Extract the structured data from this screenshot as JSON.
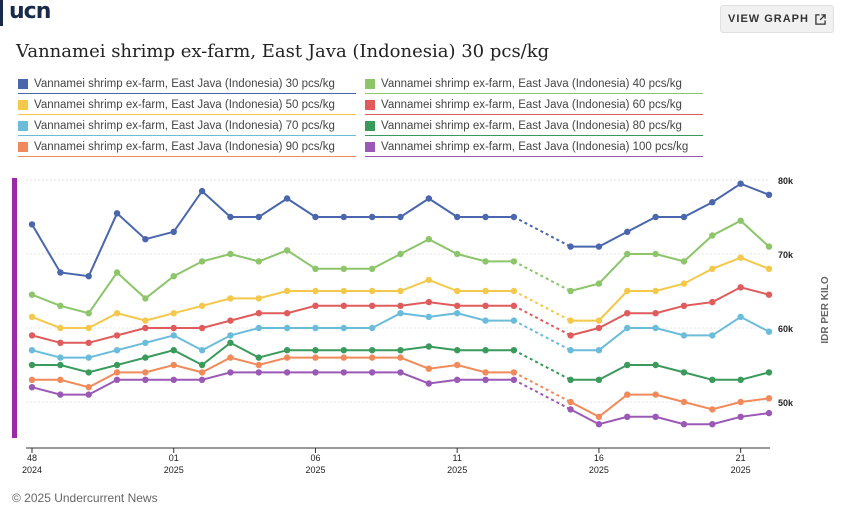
{
  "brand": {
    "logo_text": "ucn"
  },
  "header": {
    "view_graph_label": "VIEW GRAPH"
  },
  "footer": {
    "copyright": "© 2025 Undercurrent News"
  },
  "chart_data": {
    "type": "line",
    "title": "Vannamei shrimp ex-farm, East Java (Indonesia) 30 pcs/kg",
    "ylabel": "IDR PER KILO",
    "xlabel": "",
    "ylim": [
      45000,
      80000
    ],
    "y_ticks": [
      {
        "value": 50000,
        "label": "50k"
      },
      {
        "value": 60000,
        "label": "60k"
      },
      {
        "value": 70000,
        "label": "70k"
      },
      {
        "value": 80000,
        "label": "80k"
      }
    ],
    "x_ticks": [
      {
        "index": 0,
        "week": "48",
        "year": "2024"
      },
      {
        "index": 5,
        "week": "01",
        "year": "2025"
      },
      {
        "index": 10,
        "week": "06",
        "year": "2025"
      },
      {
        "index": 15,
        "week": "11",
        "year": "2025"
      },
      {
        "index": 20,
        "week": "16",
        "year": "2025"
      },
      {
        "index": 25,
        "week": "21",
        "year": "2025"
      }
    ],
    "x_count": 27,
    "gap_after_index": 17,
    "gap_before_index": 19,
    "series": [
      {
        "name": "Vannamei shrimp ex-farm, East Java (Indonesia) 30 pcs/kg",
        "color": "#4a66ac",
        "values": [
          74000,
          67500,
          67000,
          75500,
          72000,
          73000,
          78500,
          75000,
          75000,
          77500,
          75000,
          75000,
          75000,
          75000,
          77500,
          75000,
          75000,
          75000,
          null,
          71000,
          71000,
          73000,
          75000,
          75000,
          77000,
          79500,
          78000
        ]
      },
      {
        "name": "Vannamei shrimp ex-farm, East Java (Indonesia) 40 pcs/kg",
        "color": "#8cc56a",
        "values": [
          64500,
          63000,
          62000,
          67500,
          64000,
          67000,
          69000,
          70000,
          69000,
          70500,
          68000,
          68000,
          68000,
          70000,
          72000,
          70000,
          69000,
          69000,
          null,
          65000,
          66000,
          70000,
          70000,
          69000,
          72500,
          74500,
          71000
        ]
      },
      {
        "name": "Vannamei shrimp ex-farm, East Java (Indonesia) 50 pcs/kg",
        "color": "#f4c84a",
        "values": [
          61500,
          60000,
          60000,
          62000,
          61000,
          62000,
          63000,
          64000,
          64000,
          65000,
          65000,
          65000,
          65000,
          65000,
          66500,
          65000,
          65000,
          65000,
          null,
          61000,
          61000,
          65000,
          65000,
          66000,
          68000,
          69500,
          68000
        ]
      },
      {
        "name": "Vannamei shrimp ex-farm, East Java (Indonesia) 60 pcs/kg",
        "color": "#e05c5c",
        "values": [
          59000,
          58000,
          58000,
          59000,
          60000,
          60000,
          60000,
          61000,
          62000,
          62000,
          63000,
          63000,
          63000,
          63000,
          63500,
          63000,
          63000,
          63000,
          null,
          59000,
          60000,
          62000,
          62000,
          63000,
          63500,
          65500,
          64500
        ]
      },
      {
        "name": "Vannamei shrimp ex-farm, East Java (Indonesia) 70 pcs/kg",
        "color": "#6bbcdb",
        "values": [
          57000,
          56000,
          56000,
          57000,
          58000,
          59000,
          57000,
          59000,
          60000,
          60000,
          60000,
          60000,
          60000,
          62000,
          61500,
          62000,
          61000,
          61000,
          null,
          57000,
          57000,
          60000,
          60000,
          59000,
          59000,
          61500,
          59500
        ]
      },
      {
        "name": "Vannamei shrimp ex-farm, East Java (Indonesia) 80 pcs/kg",
        "color": "#3a9a5c",
        "values": [
          55000,
          55000,
          54000,
          55000,
          56000,
          57000,
          55000,
          58000,
          56000,
          57000,
          57000,
          57000,
          57000,
          57000,
          57500,
          57000,
          57000,
          57000,
          null,
          53000,
          53000,
          55000,
          55000,
          54000,
          53000,
          53000,
          54000
        ]
      },
      {
        "name": "Vannamei shrimp ex-farm, East Java (Indonesia) 90 pcs/kg",
        "color": "#f08a5a",
        "values": [
          53000,
          53000,
          52000,
          54000,
          54000,
          55000,
          54000,
          56000,
          55000,
          56000,
          56000,
          56000,
          56000,
          56000,
          54500,
          55000,
          54000,
          54000,
          null,
          50000,
          48000,
          51000,
          51000,
          50000,
          49000,
          50000,
          50500
        ]
      },
      {
        "name": "Vannamei shrimp ex-farm, East Java (Indonesia) 100 pcs/kg",
        "color": "#9b59b6",
        "values": [
          52000,
          51000,
          51000,
          53000,
          53000,
          53000,
          53000,
          54000,
          54000,
          54000,
          54000,
          54000,
          54000,
          54000,
          52500,
          53000,
          53000,
          53000,
          null,
          49000,
          47000,
          48000,
          48000,
          47000,
          47000,
          48000,
          48500
        ]
      }
    ]
  }
}
